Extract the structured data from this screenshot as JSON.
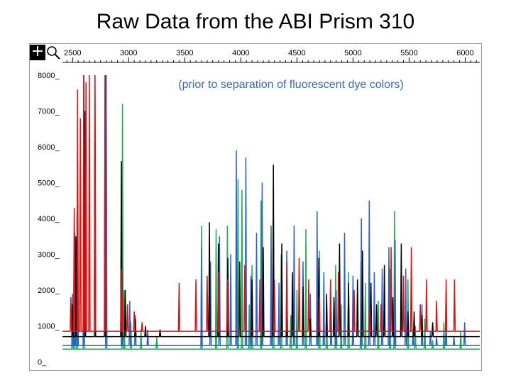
{
  "page": {
    "title": "Raw Data from the ABI Prism 310"
  },
  "toolbar": {
    "crosshair_icon": "crosshair-icon",
    "zoom_icon": "magnifier-icon"
  },
  "chart_data": {
    "type": "line",
    "title": "",
    "subtitle": "(prior to separation of fluorescent dye colors)",
    "xlabel": "",
    "ylabel": "",
    "xlim": [
      2410,
      6130
    ],
    "ylim": [
      0,
      8000
    ],
    "x_ticks": [
      2500,
      3000,
      3500,
      4000,
      4500,
      5000,
      5500,
      6000
    ],
    "y_ticks": [
      0,
      1000,
      2000,
      3000,
      4000,
      5000,
      6000,
      7000,
      8000
    ],
    "x_tick_labels": [
      "2500",
      "3000",
      "3500",
      "4000",
      "4500",
      "5000",
      "5500",
      "6000"
    ],
    "y_tick_labels": [
      "0_",
      "1000_",
      "2000_",
      "3000_",
      "4000_",
      "5000_",
      "6000_",
      "7000_",
      "8000_"
    ],
    "grid": false,
    "legend": "none",
    "colors": {
      "blue": "#2a5fd6",
      "green": "#1fae4f",
      "black": "#000000",
      "red": "#e01010",
      "subtitle": "#3a66c4"
    },
    "series": [
      {
        "color": "#1fae4f",
        "baseline": 350,
        "peaks": [
          [
            2498,
            1600
          ],
          [
            2515,
            3400
          ],
          [
            2540,
            4200
          ],
          [
            2600,
            8000
          ],
          [
            2800,
            8000
          ],
          [
            2945,
            7200
          ],
          [
            2960,
            2000
          ],
          [
            3020,
            1100
          ],
          [
            3110,
            900
          ],
          [
            3250,
            700
          ],
          [
            3650,
            3800
          ],
          [
            3780,
            3700
          ],
          [
            3880,
            3800
          ],
          [
            3975,
            5100
          ],
          [
            4010,
            4800
          ],
          [
            4075,
            1600
          ],
          [
            4100,
            2700
          ],
          [
            4180,
            4500
          ],
          [
            4290,
            4300
          ],
          [
            4360,
            3000
          ],
          [
            4445,
            1300
          ],
          [
            4500,
            2000
          ],
          [
            4580,
            3700
          ],
          [
            4700,
            3100
          ],
          [
            4765,
            1600
          ],
          [
            4845,
            2700
          ],
          [
            4895,
            1600
          ],
          [
            4960,
            2500
          ],
          [
            5070,
            2800
          ],
          [
            5110,
            2200
          ],
          [
            5225,
            1700
          ],
          [
            5330,
            2600
          ],
          [
            5370,
            4200
          ],
          [
            5490,
            2300
          ],
          [
            5555,
            1000
          ],
          [
            5640,
            1200
          ],
          [
            5710,
            600
          ],
          [
            5810,
            1100
          ],
          [
            5960,
            850
          ]
        ]
      },
      {
        "color": "#2a5fd6",
        "baseline": 450,
        "peaks": [
          [
            2500,
            1900
          ],
          [
            2520,
            3600
          ],
          [
            2545,
            4400
          ],
          [
            2600,
            8000
          ],
          [
            2800,
            8000
          ],
          [
            2940,
            2400
          ],
          [
            3010,
            1700
          ],
          [
            3060,
            1300
          ],
          [
            3170,
            900
          ],
          [
            3650,
            3200
          ],
          [
            3730,
            2800
          ],
          [
            3810,
            3500
          ],
          [
            3910,
            3000
          ],
          [
            3960,
            5900
          ],
          [
            4045,
            5700
          ],
          [
            4090,
            2400
          ],
          [
            4140,
            3600
          ],
          [
            4190,
            5000
          ],
          [
            4270,
            3800
          ],
          [
            4340,
            2200
          ],
          [
            4410,
            3100
          ],
          [
            4475,
            3800
          ],
          [
            4555,
            2800
          ],
          [
            4620,
            1900
          ],
          [
            4680,
            4200
          ],
          [
            4740,
            2500
          ],
          [
            4805,
            1400
          ],
          [
            4850,
            2000
          ],
          [
            4925,
            3600
          ],
          [
            5000,
            2400
          ],
          [
            5075,
            4000
          ],
          [
            5145,
            4500
          ],
          [
            5190,
            2500
          ],
          [
            5260,
            2600
          ],
          [
            5320,
            3200
          ],
          [
            5375,
            3400
          ],
          [
            5470,
            2600
          ],
          [
            5535,
            900
          ],
          [
            5615,
            1600
          ],
          [
            5690,
            850
          ],
          [
            5745,
            700
          ],
          [
            5830,
            1200
          ],
          [
            5900,
            700
          ],
          [
            5995,
            1100
          ]
        ]
      },
      {
        "color": "#000000",
        "baseline": 700,
        "peaks": [
          [
            2500,
            1600
          ],
          [
            2530,
            3500
          ],
          [
            2610,
            7000
          ],
          [
            2700,
            8000
          ],
          [
            2790,
            8000
          ],
          [
            2935,
            5600
          ],
          [
            2970,
            2000
          ],
          [
            3060,
            1200
          ],
          [
            3150,
            1000
          ],
          [
            3280,
            900
          ],
          [
            3720,
            3900
          ],
          [
            3800,
            3300
          ],
          [
            3885,
            2900
          ],
          [
            3990,
            2800
          ],
          [
            4100,
            2300
          ],
          [
            4200,
            3200
          ],
          [
            4290,
            5500
          ],
          [
            4365,
            3300
          ],
          [
            4410,
            2300
          ],
          [
            4460,
            2500
          ],
          [
            4555,
            2100
          ],
          [
            4620,
            1200
          ],
          [
            4695,
            2900
          ],
          [
            4765,
            1900
          ],
          [
            4830,
            1800
          ],
          [
            4880,
            3300
          ],
          [
            4960,
            2200
          ],
          [
            5040,
            2300
          ],
          [
            5085,
            3100
          ],
          [
            5160,
            2200
          ],
          [
            5210,
            1600
          ],
          [
            5280,
            2700
          ],
          [
            5355,
            1800
          ],
          [
            5430,
            3300
          ],
          [
            5490,
            1400
          ],
          [
            5545,
            1400
          ],
          [
            5615,
            1300
          ],
          [
            5710,
            1100
          ]
        ]
      },
      {
        "color": "#e01010",
        "baseline": 850,
        "peaks": [
          [
            2485,
            1800
          ],
          [
            2515,
            4300
          ],
          [
            2545,
            7600
          ],
          [
            2570,
            6800
          ],
          [
            2600,
            8000
          ],
          [
            2620,
            7800
          ],
          [
            2650,
            8000
          ],
          [
            2700,
            8000
          ],
          [
            2790,
            8000
          ],
          [
            2935,
            2600
          ],
          [
            2945,
            1900
          ],
          [
            2990,
            1600
          ],
          [
            3050,
            1400
          ],
          [
            3120,
            1100
          ],
          [
            3450,
            2200
          ],
          [
            3600,
            2300
          ],
          [
            3700,
            2400
          ],
          [
            3800,
            2500
          ],
          [
            3880,
            2300
          ],
          [
            4035,
            2700
          ],
          [
            4170,
            2300
          ],
          [
            4300,
            2300
          ],
          [
            4410,
            2800
          ],
          [
            4520,
            2900
          ],
          [
            4605,
            2300
          ],
          [
            4700,
            1800
          ],
          [
            4800,
            2300
          ],
          [
            4870,
            2500
          ],
          [
            5010,
            2000
          ],
          [
            5150,
            1500
          ],
          [
            5250,
            1600
          ],
          [
            5340,
            3200
          ],
          [
            5450,
            2400
          ],
          [
            5520,
            3200
          ],
          [
            5600,
            1600
          ],
          [
            5655,
            2300
          ],
          [
            5745,
            1700
          ],
          [
            5830,
            2300
          ],
          [
            5905,
            2300
          ]
        ]
      }
    ]
  }
}
